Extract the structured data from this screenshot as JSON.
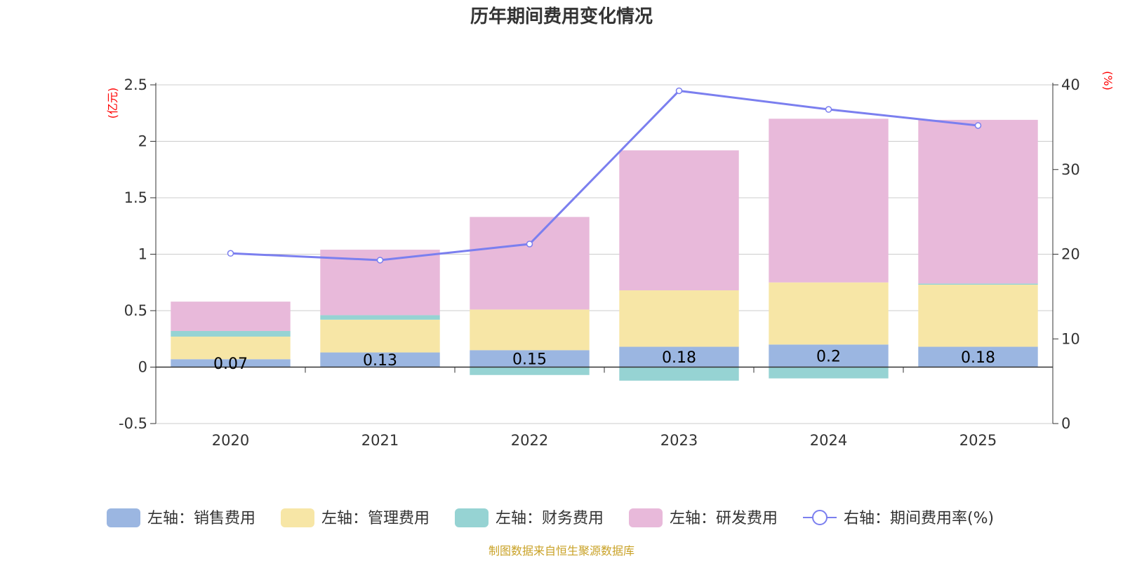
{
  "chart_data": {
    "type": "bar",
    "stacked": true,
    "title": "历年期间费用变化情况",
    "categories": [
      "2020",
      "2021",
      "2022",
      "2023",
      "2024",
      "2025"
    ],
    "left_axis": {
      "unit_label": "(亿元)",
      "ylim": [
        -0.5,
        2.5
      ],
      "ticks": [
        -0.5,
        0,
        0.5,
        1,
        1.5,
        2,
        2.5
      ],
      "tick_labels": [
        "-0.5",
        "0",
        "0.5",
        "1",
        "1.5",
        "2",
        "2.5"
      ]
    },
    "right_axis": {
      "unit_label": "(%)",
      "ylim": [
        0,
        40
      ],
      "ticks": [
        0,
        10,
        20,
        30,
        40
      ],
      "tick_labels": [
        "0",
        "10",
        "20",
        "30",
        "40"
      ]
    },
    "series": [
      {
        "name": "左轴：销售费用",
        "kind": "bar",
        "color": "#9bb6e1",
        "values": [
          0.07,
          0.13,
          0.15,
          0.18,
          0.2,
          0.18
        ],
        "labels": [
          "0.07",
          "0.13",
          "0.15",
          "0.18",
          "0.2",
          "0.18"
        ]
      },
      {
        "name": "左轴：管理费用",
        "kind": "bar",
        "color": "#f7e6a6",
        "values": [
          0.2,
          0.29,
          0.36,
          0.5,
          0.55,
          0.55
        ]
      },
      {
        "name": "左轴：财务费用",
        "kind": "bar",
        "color": "#96d3d3",
        "values": [
          0.05,
          0.04,
          -0.07,
          -0.12,
          -0.1,
          0.01
        ]
      },
      {
        "name": "左轴：研发费用",
        "kind": "bar",
        "color": "#e8b9da",
        "values": [
          0.26,
          0.58,
          0.82,
          1.24,
          1.45,
          1.45
        ]
      },
      {
        "name": "右轴：期间费用率(%)",
        "kind": "line",
        "color": "#7b7fef",
        "values": [
          20.1,
          19.3,
          21.2,
          39.3,
          37.1,
          35.2
        ]
      }
    ]
  },
  "source": "制图数据来自恒生聚源数据库"
}
